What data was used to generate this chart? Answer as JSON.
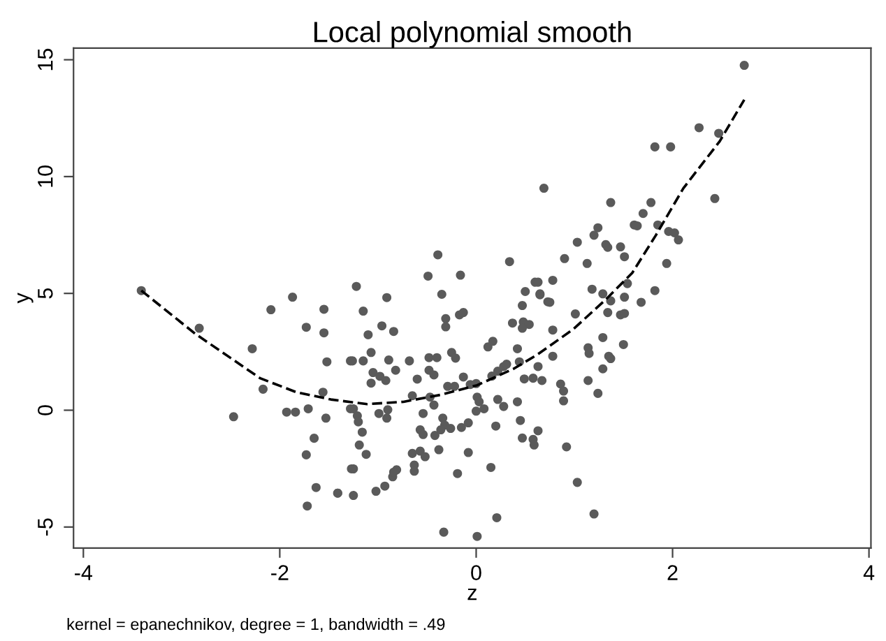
{
  "chart_data": {
    "type": "scatter",
    "title": "Local polynomial smooth",
    "xlabel": "z",
    "ylabel": "y",
    "annotations": [
      "kernel = epanechnikov, degree = 1, bandwidth = .49"
    ],
    "xlim": [
      -4.1,
      4.02
    ],
    "ylim": [
      -5.9,
      15.5
    ],
    "xticks": [
      -4,
      -2,
      0,
      2,
      4
    ],
    "yticks": [
      -5,
      0,
      5,
      10,
      15
    ],
    "grid": false,
    "legend": false,
    "series": [
      {
        "color": "#5a5a5a",
        "marker": "circle",
        "x": [
          -3.41,
          -2.82,
          -2.28,
          -2.17,
          -2.47,
          -2.09,
          -1.87,
          -1.73,
          -1.55,
          -1.55,
          -1.52,
          -1.56,
          -1.93,
          -1.84,
          -1.71,
          -1.53,
          -1.65,
          -1.73,
          -1.63,
          -1.72,
          -1.41,
          -1.27,
          -1.28,
          -1.28,
          -0.39,
          -0.49,
          -0.16,
          -0.35,
          0.34,
          -1.22,
          -0.91,
          -1.15,
          -0.96,
          -0.84,
          -1.1,
          -0.31,
          -0.31,
          -0.17,
          -0.13,
          -1.07,
          -1.26,
          -1.15,
          -0.89,
          -0.68,
          -0.48,
          -0.4,
          -0.25,
          -0.21,
          -0.82,
          -1.05,
          -0.98,
          -0.92,
          -1.07,
          -0.6,
          -0.48,
          -0.43,
          -0.13,
          -0.29,
          -0.22,
          -0.06,
          0.0,
          -0.65,
          -0.47,
          -0.43,
          0.01,
          0.12,
          0.17,
          0.16,
          0.22,
          0.28,
          0.31,
          0.37,
          0.47,
          0.5,
          0.6,
          0.65,
          0.73,
          0.48,
          0.54,
          0.47,
          0.42,
          0.44,
          0.63,
          0.67,
          0.58,
          0.49,
          -0.99,
          -0.91,
          -0.9,
          -1.25,
          -1.21,
          -1.2,
          -1.16,
          -1.19,
          -1.12,
          -1.25,
          -1.41,
          -1.25,
          -1.02,
          -0.93,
          -0.85,
          -0.81,
          -0.84,
          -0.65,
          -0.57,
          -0.52,
          -0.63,
          -0.63,
          -0.57,
          -0.54,
          -0.54,
          -0.42,
          -0.38,
          -0.34,
          -0.32,
          -0.26,
          -0.36,
          -0.15,
          -0.08,
          0.0,
          0.08,
          0.03,
          -0.08,
          -0.19,
          0.15,
          0.2,
          0.22,
          0.28,
          0.42,
          0.45,
          0.47,
          0.58,
          0.59,
          0.63,
          -0.33,
          0.01,
          0.21,
          1.82,
          1.98,
          0.69,
          2.43,
          1.37,
          1.78,
          1.7,
          1.61,
          1.64,
          1.85,
          1.24,
          1.2,
          1.03,
          1.32,
          1.34,
          1.47,
          1.51,
          1.96,
          2.02,
          2.06,
          0.9,
          1.13,
          1.94,
          0.78,
          0.63,
          0.65,
          0.75,
          1.18,
          1.29,
          1.37,
          1.54,
          1.51,
          1.82,
          1.68,
          1.01,
          1.34,
          1.47,
          1.51,
          0.78,
          1.29,
          1.14,
          1.15,
          1.5,
          1.35,
          1.37,
          1.29,
          0.78,
          1.14,
          1.24,
          0.86,
          0.89,
          0.89,
          0.92,
          1.03,
          1.2,
          2.73,
          2.27,
          2.47
        ],
        "values": [
          5.12,
          3.51,
          2.63,
          0.9,
          -0.28,
          4.3,
          4.84,
          3.55,
          4.32,
          3.31,
          2.07,
          0.77,
          -0.08,
          -0.08,
          0.06,
          -0.34,
          -1.2,
          -1.91,
          -3.31,
          -4.1,
          -3.55,
          -2.51,
          2.11,
          0.06,
          6.65,
          5.74,
          5.78,
          4.96,
          6.36,
          5.3,
          4.82,
          4.24,
          3.61,
          3.37,
          3.23,
          3.92,
          3.57,
          4.08,
          4.18,
          2.47,
          2.11,
          2.11,
          2.15,
          2.11,
          2.25,
          2.25,
          2.47,
          2.23,
          1.71,
          1.61,
          1.45,
          1.27,
          1.16,
          1.33,
          1.71,
          1.51,
          1.42,
          1.02,
          1.02,
          1.1,
          1.14,
          0.62,
          0.56,
          0.22,
          0.56,
          2.71,
          2.95,
          1.46,
          1.67,
          1.87,
          1.97,
          3.73,
          4.48,
          5.08,
          5.48,
          4.94,
          4.64,
          3.78,
          3.67,
          3.51,
          2.63,
          2.07,
          1.87,
          1.27,
          1.37,
          1.34,
          -0.14,
          -0.34,
          0.02,
          0.06,
          -0.24,
          -0.5,
          -0.94,
          -1.49,
          -1.89,
          -2.51,
          -3.55,
          -3.65,
          -3.47,
          -3.25,
          -2.85,
          -2.55,
          -2.65,
          -1.85,
          -1.75,
          -1.99,
          -2.35,
          -2.61,
          -0.84,
          -1.04,
          -0.14,
          -1.08,
          -1.69,
          -0.34,
          -0.64,
          -0.78,
          -0.84,
          -0.74,
          -0.54,
          -0.04,
          0.06,
          0.36,
          -1.81,
          -2.71,
          -2.45,
          -0.68,
          0.46,
          0.16,
          0.36,
          -0.44,
          -1.19,
          -1.25,
          -1.49,
          -0.88,
          -5.22,
          -5.4,
          -4.6,
          11.27,
          11.27,
          9.5,
          9.06,
          8.89,
          8.89,
          8.42,
          7.93,
          7.89,
          7.93,
          7.81,
          7.49,
          7.19,
          7.09,
          6.97,
          6.99,
          6.57,
          7.65,
          7.59,
          7.29,
          6.49,
          6.28,
          6.28,
          5.56,
          5.48,
          4.98,
          4.62,
          5.18,
          4.98,
          4.68,
          5.42,
          4.84,
          5.12,
          4.62,
          4.12,
          4.18,
          4.08,
          4.14,
          3.43,
          3.11,
          2.67,
          2.43,
          2.81,
          2.31,
          2.21,
          1.77,
          2.31,
          1.27,
          0.72,
          1.12,
          0.82,
          0.4,
          -1.57,
          -3.09,
          -4.44,
          14.76,
          12.09,
          11.85
        ]
      },
      {
        "type": "line",
        "color": "#000000",
        "marker": "none",
        "line_style": "dashed",
        "x": [
          -3.41,
          -2.86,
          -2.2,
          -1.83,
          -1.48,
          -1.11,
          -0.74,
          -0.36,
          0.01,
          0.38,
          0.62,
          0.99,
          1.31,
          1.59,
          1.83,
          2.11,
          2.48,
          2.73
        ],
        "values": [
          5.12,
          3.27,
          1.37,
          0.77,
          0.46,
          0.26,
          0.36,
          0.66,
          1.07,
          1.77,
          2.37,
          3.47,
          4.7,
          5.88,
          7.49,
          9.5,
          11.51,
          13.29
        ]
      }
    ]
  }
}
